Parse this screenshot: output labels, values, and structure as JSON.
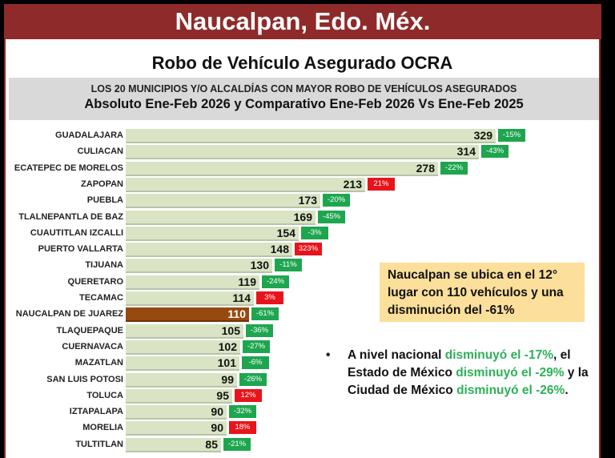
{
  "header": {
    "title": "Naucalpan, Edo. Méx."
  },
  "slide": {
    "title": "Robo de Vehículo Asegurado OCRA",
    "subtitle_line1": "LOS 20 MUNICIPIOS Y/O ALCALDÍAS CON MAYOR ROBO DE VEHÍCULOS ASEGURADOS",
    "subtitle_line2": "Absoluto Ene-Feb 2026 y Comparativo Ene-Feb 2026 Vs Ene-Feb 2025"
  },
  "colors": {
    "header": "#8e2a2a",
    "bar": "#d8e4c3",
    "highlight_bar": "#964910",
    "decrease": "#1ea64f",
    "increase": "#e8141b",
    "note_bg": "#fbdf9a",
    "green_text": "#2cb157"
  },
  "chart_data": {
    "type": "bar",
    "orientation": "horizontal",
    "title": "Robo de Vehículo Asegurado OCRA",
    "subtitle": "LOS 20 MUNICIPIOS Y/O ALCALDÍAS CON MAYOR ROBO DE VEHÍCULOS ASEGURADOS — Absoluto Ene-Feb 2026 y Comparativo Ene-Feb 2026 Vs Ene-Feb 2025",
    "categories": [
      "GUADALAJARA",
      "CULIACAN",
      "ECATEPEC DE MORELOS",
      "ZAPOPAN",
      "PUEBLA",
      "TLALNEPANTLA DE BAZ",
      "CUAUTITLAN IZCALLI",
      "PUERTO VALLARTA",
      "TIJUANA",
      "QUERETARO",
      "TECAMAC",
      "NAUCALPAN DE JUAREZ",
      "TLAQUEPAQUE",
      "CUERNAVACA",
      "MAZATLAN",
      "SAN LUIS POTOSI",
      "TOLUCA",
      "IZTAPALAPA",
      "MORELIA",
      "TULTITLAN"
    ],
    "series": [
      {
        "name": "Ene-Feb 2026",
        "values": [
          329,
          314,
          278,
          213,
          173,
          169,
          154,
          148,
          130,
          119,
          114,
          110,
          105,
          102,
          101,
          99,
          95,
          90,
          90,
          85
        ]
      },
      {
        "name": "Variación vs Ene-Feb 2025",
        "values": [
          "-15%",
          "-43%",
          "-22%",
          "21%",
          "-20%",
          "-45%",
          "-3%",
          "323%",
          "-11%",
          "-24%",
          "3%",
          "-61%",
          "-36%",
          "-27%",
          "-6%",
          "-26%",
          "12%",
          "-32%",
          "18%",
          "-21%"
        ]
      }
    ],
    "highlight": "NAUCALPAN DE JUAREZ",
    "xlabel": "",
    "ylabel": "",
    "grid": false
  },
  "rows": [
    {
      "name": "GUADALAJARA",
      "value": "329",
      "pct": "-15%",
      "dir": "down"
    },
    {
      "name": "CULIACAN",
      "value": "314",
      "pct": "-43%",
      "dir": "down"
    },
    {
      "name": "ECATEPEC DE MORELOS",
      "value": "278",
      "pct": "-22%",
      "dir": "down"
    },
    {
      "name": "ZAPOPAN",
      "value": "213",
      "pct": "21%",
      "dir": "up"
    },
    {
      "name": "PUEBLA",
      "value": "173",
      "pct": "-20%",
      "dir": "down"
    },
    {
      "name": "TLALNEPANTLA DE BAZ",
      "value": "169",
      "pct": "-45%",
      "dir": "down"
    },
    {
      "name": "CUAUTITLAN IZCALLI",
      "value": "154",
      "pct": "-3%",
      "dir": "down"
    },
    {
      "name": "PUERTO VALLARTA",
      "value": "148",
      "pct": "323%",
      "dir": "up"
    },
    {
      "name": "TIJUANA",
      "value": "130",
      "pct": "-11%",
      "dir": "down"
    },
    {
      "name": "QUERETARO",
      "value": "119",
      "pct": "-24%",
      "dir": "down"
    },
    {
      "name": "TECAMAC",
      "value": "114",
      "pct": "3%",
      "dir": "up"
    },
    {
      "name": "NAUCALPAN DE JUAREZ",
      "value": "110",
      "pct": "-61%",
      "dir": "down",
      "highlight": true
    },
    {
      "name": "TLAQUEPAQUE",
      "value": "105",
      "pct": "-36%",
      "dir": "down"
    },
    {
      "name": "CUERNAVACA",
      "value": "102",
      "pct": "-27%",
      "dir": "down"
    },
    {
      "name": "MAZATLAN",
      "value": "101",
      "pct": "-6%",
      "dir": "down"
    },
    {
      "name": "SAN LUIS POTOSI",
      "value": "99",
      "pct": "-26%",
      "dir": "down"
    },
    {
      "name": "TOLUCA",
      "value": "95",
      "pct": "12%",
      "dir": "up"
    },
    {
      "name": "IZTAPALAPA",
      "value": "90",
      "pct": "-32%",
      "dir": "down"
    },
    {
      "name": "MORELIA",
      "value": "90",
      "pct": "18%",
      "dir": "up"
    },
    {
      "name": "TULTITLAN",
      "value": "85",
      "pct": "-21%",
      "dir": "down"
    }
  ],
  "note": {
    "text": "Naucalpan se ubica en el 12° lugar con 110 vehículos y una disminución del -61%"
  },
  "bullet": {
    "dot": "•",
    "p1": "A nivel nacional ",
    "g1": "disminuyó el -17%",
    "p2": ", el Estado de México ",
    "g2": "disminuyó el -29%",
    "p3": " y la Ciudad de México ",
    "g3": "disminuyó el -26%",
    "p4": "."
  }
}
